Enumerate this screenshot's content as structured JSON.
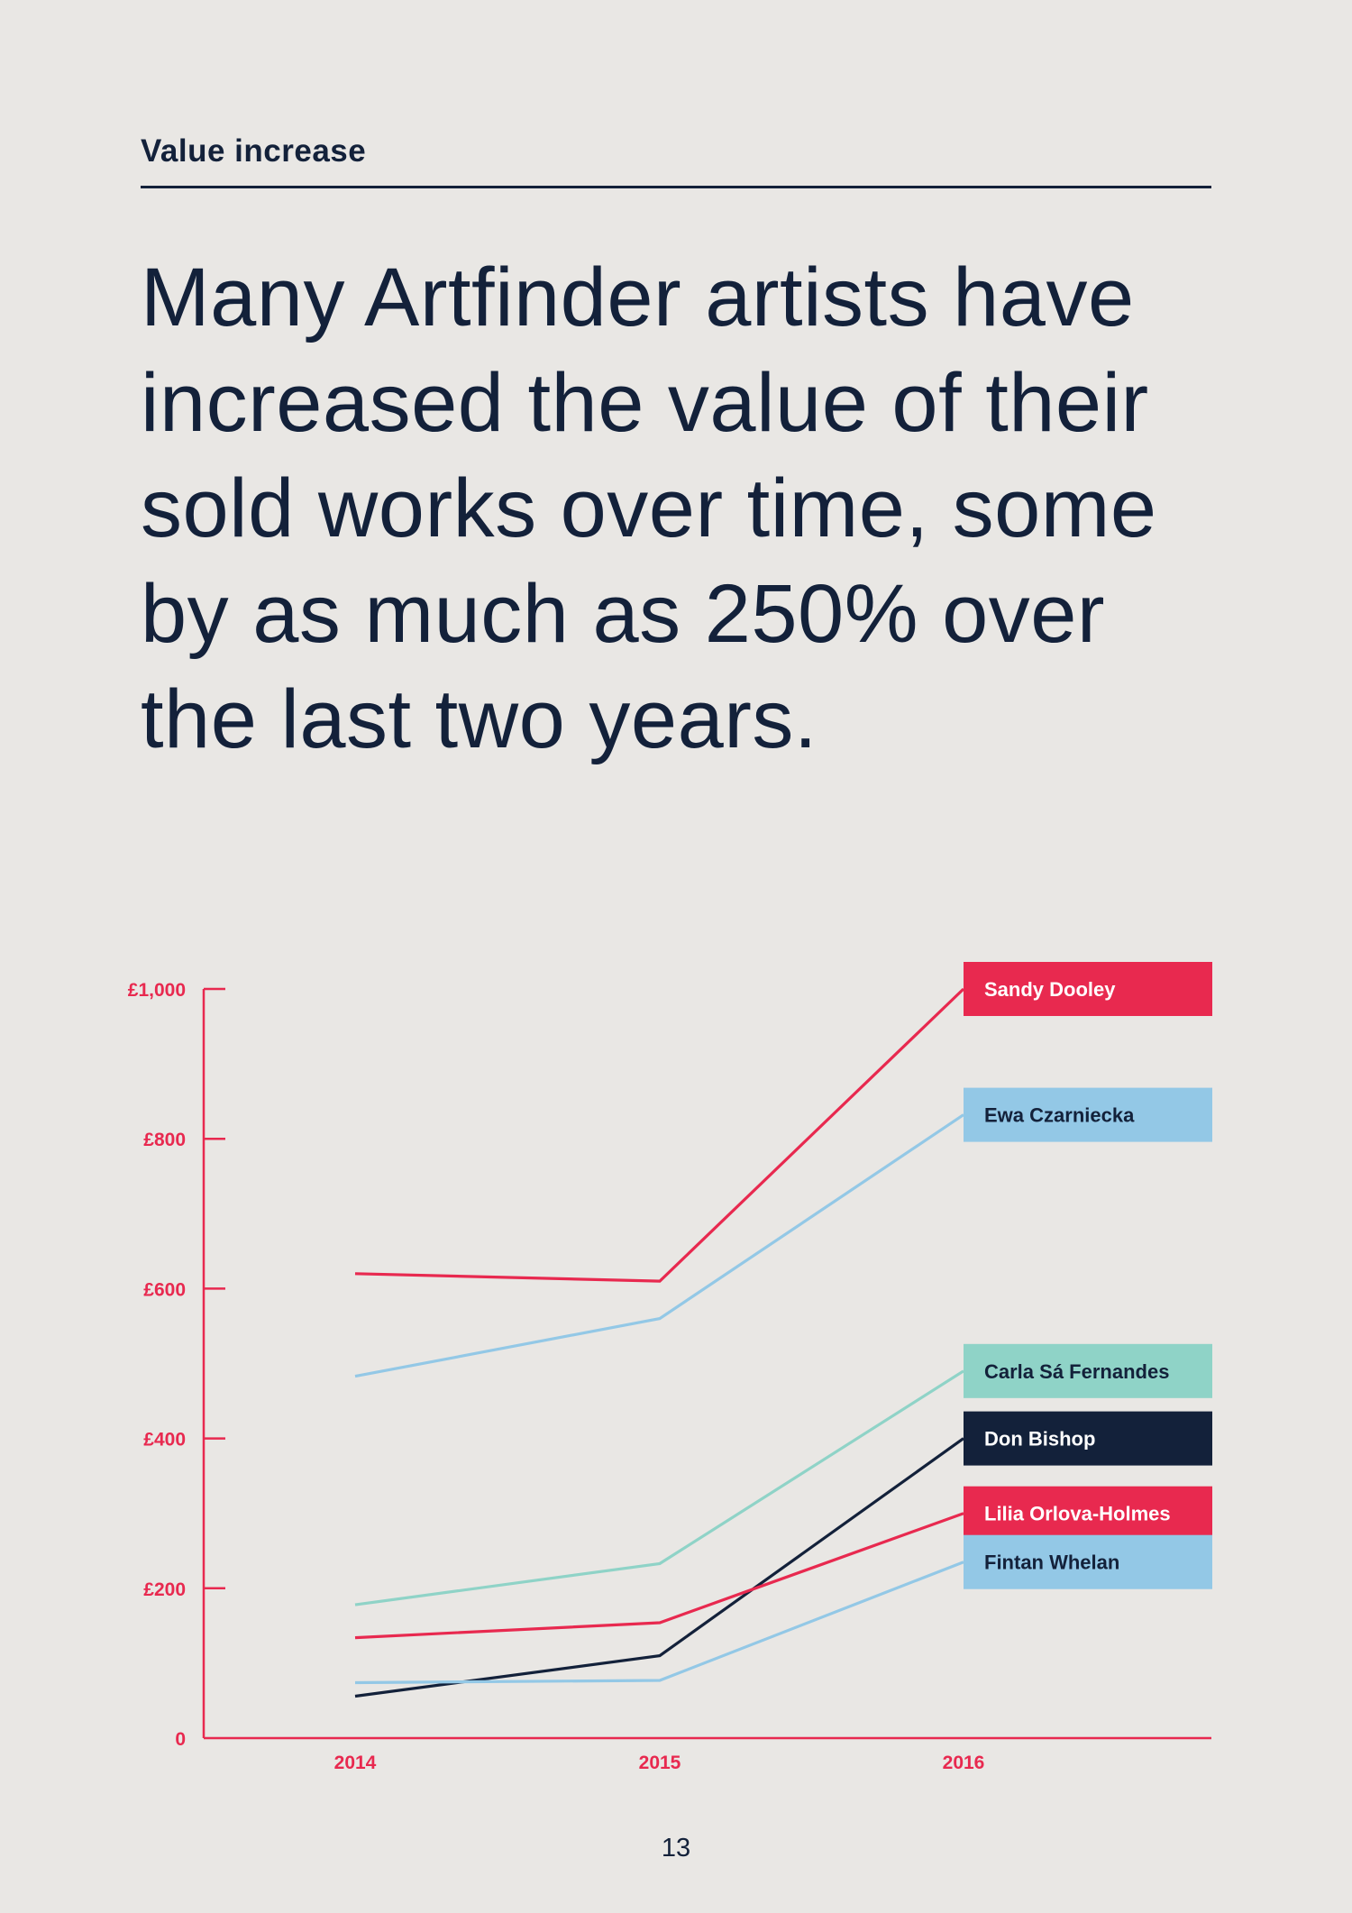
{
  "section": {
    "label": "Value increase"
  },
  "headline": {
    "text": "Many Artfinder artists have increased the value of their sold works over time, some by as much as 250% over the last two years."
  },
  "chart_data": {
    "type": "line",
    "x": [
      "2014",
      "2015",
      "2016"
    ],
    "yticks": [
      {
        "value": 0,
        "label": "0"
      },
      {
        "value": 200,
        "label": "£200"
      },
      {
        "value": 400,
        "label": "£400"
      },
      {
        "value": 600,
        "label": "£600"
      },
      {
        "value": 800,
        "label": "£800"
      },
      {
        "value": 1000,
        "label": "£1,000"
      }
    ],
    "ylim": [
      0,
      1000
    ],
    "grid": false,
    "legend_placement": "right",
    "axis_color": "#e8294f",
    "series": [
      {
        "name": "Sandy Dooley",
        "values": [
          620,
          610,
          1000
        ],
        "color": "#e8294f",
        "label_text_color": "#ffffff"
      },
      {
        "name": "Ewa Czarniecka",
        "values": [
          483,
          560,
          832
        ],
        "color": "#93c8e6",
        "label_text_color": "#13213a"
      },
      {
        "name": "Carla Sá Fernandes",
        "values": [
          178,
          233,
          490
        ],
        "color": "#8fd3c7",
        "label_text_color": "#13213a"
      },
      {
        "name": "Don Bishop",
        "values": [
          56,
          110,
          400
        ],
        "color": "#13213a",
        "label_text_color": "#ffffff"
      },
      {
        "name": "Lilia Orlova-Holmes",
        "values": [
          134,
          154,
          300
        ],
        "color": "#e8294f",
        "label_text_color": "#ffffff"
      },
      {
        "name": "Fintan Whelan",
        "values": [
          74,
          77,
          235
        ],
        "color": "#93c8e6",
        "label_text_color": "#13213a"
      }
    ]
  },
  "page": {
    "number": "13"
  }
}
